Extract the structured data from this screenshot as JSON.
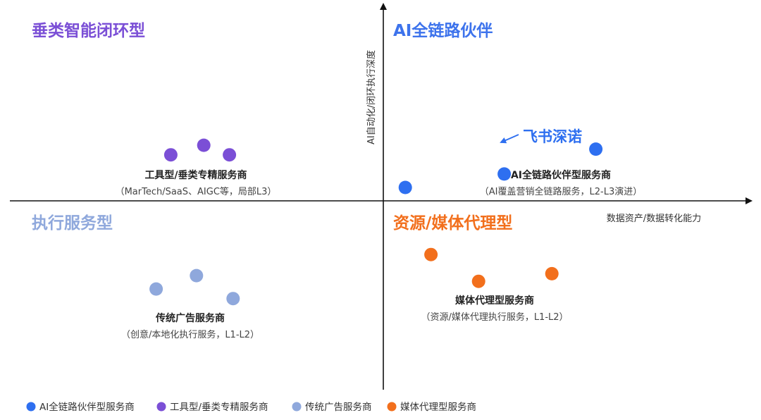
{
  "colors": {
    "blue": "#2e6ff0",
    "purple": "#7b4fd6",
    "lightblue": "#8fa8dc",
    "orange": "#f26f1c",
    "axis": "#111111"
  },
  "quadrants": [
    {
      "key": "top-right",
      "title": "AI全链路伙伴",
      "color": "#3d73ec"
    },
    {
      "key": "top-left",
      "title": "垂类智能闭环型",
      "color": "#7b4fd6"
    },
    {
      "key": "bottom-left",
      "title": "执行服务型",
      "color": "#8fa8dc"
    },
    {
      "key": "bottom-right",
      "title": "资源/媒体代理型",
      "color": "#f26f1c"
    }
  ],
  "chart_data": {
    "type": "scatter",
    "xlabel": "数据资产/数据转化能力",
    "ylabel": "AI自动化/闭环执行深度",
    "xlim": [
      -1,
      1
    ],
    "ylim": [
      -1,
      1
    ],
    "grid": false,
    "legend_position": "bottom-left",
    "series": [
      {
        "name": "AI全链路伙伴型服务商",
        "color": "#2e6ff0",
        "label": "AI全链路伙伴型服务商",
        "desc": "（AI覆盖营销全链路服务，L2-L3演进）",
        "points": [
          {
            "x": 0.06,
            "y": 0.07
          },
          {
            "x": 0.33,
            "y": 0.14
          },
          {
            "x": 0.58,
            "y": 0.27
          }
        ]
      },
      {
        "name": "工具型/垂类专精服务商",
        "color": "#7b4fd6",
        "label": "工具型/垂类专精服务商",
        "desc": "（MarTech/SaaS、AIGC等，局部L3）",
        "points": [
          {
            "x": -0.58,
            "y": 0.24
          },
          {
            "x": -0.49,
            "y": 0.29
          },
          {
            "x": -0.42,
            "y": 0.24
          }
        ]
      },
      {
        "name": "传统广告服务商",
        "color": "#8fa8dc",
        "label": "传统广告服务商",
        "desc": "（创意/本地化执行服务，L1-L2）",
        "points": [
          {
            "x": -0.62,
            "y": -0.46
          },
          {
            "x": -0.51,
            "y": -0.39
          },
          {
            "x": -0.41,
            "y": -0.51
          }
        ]
      },
      {
        "name": "媒体代理型服务商",
        "color": "#f26f1c",
        "label": "媒体代理型服务商",
        "desc": "（资源/媒体代理执行服务，L1-L2）",
        "points": [
          {
            "x": 0.13,
            "y": -0.28
          },
          {
            "x": 0.26,
            "y": -0.42
          },
          {
            "x": 0.46,
            "y": -0.38
          }
        ]
      }
    ],
    "annotations": [
      {
        "text": "飞书深诺",
        "x": 0.58,
        "y": 0.27,
        "color": "#2e6ff0"
      }
    ]
  }
}
